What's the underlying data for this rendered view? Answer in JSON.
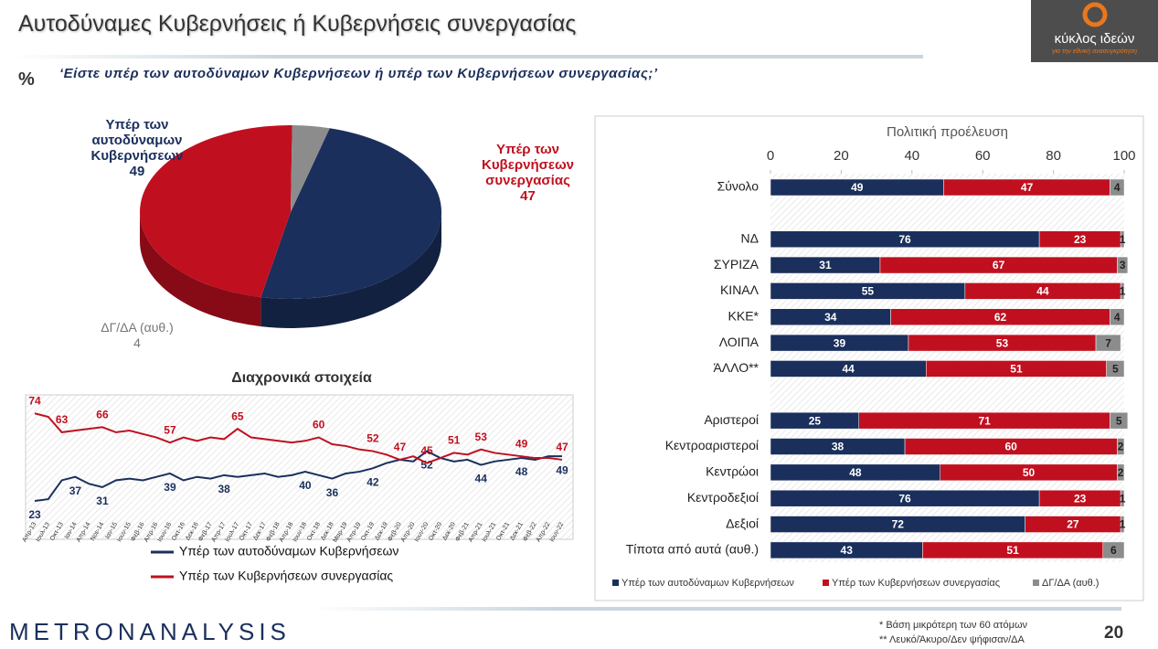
{
  "header": {
    "title": "Αυτοδύναμες Κυβερνήσεις ή Κυβερνήσεις συνεργασίας",
    "percent_sign": "%",
    "question": "‘Είστε υπέρ των αυτοδύναμων Κυβερνήσεων ή υπέρ των Κυβερνήσεων συνεργασίας;’"
  },
  "logo": {
    "name": "κύκλος ιδεών",
    "tagline": "για την εθνική ανασυγκρότηση"
  },
  "chart_data": [
    {
      "type": "pie",
      "categories": [
        "Υπέρ των αυτοδύναμων Κυβερνήσεων",
        "Υπέρ των Κυβερνήσεων συνεργασίας",
        "ΔΓ/ΔΑ (αυθ.)"
      ],
      "values": [
        49,
        47,
        4
      ],
      "colors": [
        "#1b2f5c",
        "#c0101f",
        "#8c8c8c"
      ]
    },
    {
      "type": "line",
      "title": "Διαχρονικά στοιχεία",
      "x": [
        "Απρ-13",
        "Ιουλ-13",
        "Οκτ-13",
        "Ιαν-14",
        "Απρ-14",
        "Νοε-14",
        "Ιαν-15",
        "Ιουν-15",
        "Φεβ-16",
        "Απρ-16",
        "Ιουν-16",
        "Οκτ-16",
        "Δεκ-16",
        "Φεβ-17",
        "Απρ-17",
        "Ιουλ-17",
        "Οκτ-17",
        "Δεκ-17",
        "Φεβ-18",
        "Απρ-18",
        "Ιουν-18",
        "Οκτ-18",
        "Δεκ-18",
        "Μαρ-19",
        "Απρ-19",
        "Οκτ-19",
        "Δεκ-19",
        "Φεβ-20",
        "Απρ-20",
        "Ιουν-20",
        "Οκτ-20",
        "Δεκ-20",
        "Φεβ-21",
        "Απρ-21",
        "Ιουλ-21",
        "Οκτ-21",
        "Δεκ-21",
        "Φεβ-22",
        "Απρ-22",
        "Ιουν-22"
      ],
      "ylim": [
        15,
        80
      ],
      "series": [
        {
          "name": "Υπέρ των αυτοδύναμων Κυβερνήσεων",
          "color": "#1b2f5c",
          "values": [
            23,
            24,
            35,
            37,
            33,
            31,
            35,
            36,
            35,
            37,
            39,
            35,
            37,
            36,
            38,
            37,
            38,
            39,
            37,
            38,
            40,
            38,
            36,
            39,
            40,
            42,
            45,
            47,
            46,
            52,
            48,
            46,
            47,
            44,
            46,
            47,
            48,
            47,
            49,
            49
          ],
          "value_labels": [
            "23",
            null,
            null,
            "37",
            null,
            "31",
            null,
            null,
            null,
            null,
            "39",
            null,
            null,
            null,
            "38",
            null,
            null,
            null,
            null,
            null,
            "40",
            null,
            "36",
            null,
            null,
            "42",
            null,
            null,
            null,
            "52",
            null,
            null,
            null,
            "44",
            null,
            null,
            "48",
            null,
            null,
            "49"
          ]
        },
        {
          "name": "Υπέρ των Κυβερνήσεων συνεργασίας",
          "color": "#c0101f",
          "values": [
            74,
            72,
            63,
            64,
            65,
            66,
            63,
            64,
            62,
            60,
            57,
            60,
            58,
            60,
            59,
            65,
            60,
            59,
            58,
            57,
            58,
            60,
            56,
            55,
            53,
            52,
            50,
            47,
            49,
            45,
            48,
            51,
            50,
            53,
            51,
            50,
            49,
            48,
            48,
            47
          ],
          "value_labels": [
            "74",
            null,
            "63",
            null,
            null,
            "66",
            null,
            null,
            null,
            null,
            "57",
            null,
            null,
            null,
            null,
            "65",
            null,
            null,
            null,
            null,
            null,
            "60",
            null,
            null,
            null,
            "52",
            null,
            "47",
            null,
            "45",
            null,
            "51",
            null,
            "53",
            null,
            null,
            "49",
            null,
            null,
            "47"
          ]
        }
      ]
    },
    {
      "type": "bar",
      "orientation": "horizontal",
      "stacked": true,
      "title": "Πολιτική προέλευση",
      "categories": [
        "Σύνολο",
        null,
        "ΝΔ",
        "ΣΥΡΙΖΑ",
        "ΚΙΝΑΛ",
        "ΚΚΕ*",
        "ΛΟΙΠΑ",
        "ΆΛΛΟ**",
        null,
        "Αριστεροί",
        "Κεντροαριστεροί",
        "Κεντρώοι",
        "Κεντροδεξιοί",
        "Δεξιοί",
        "Τίποτα από αυτά (αυθ.)"
      ],
      "xlim": [
        0,
        100
      ],
      "xticks": [
        0,
        20,
        40,
        60,
        80,
        100
      ],
      "series": [
        {
          "name": "Υπέρ των αυτοδύναμων Κυβερνήσεων",
          "color": "#1b2f5c",
          "values": [
            49,
            null,
            76,
            31,
            55,
            34,
            39,
            44,
            null,
            25,
            38,
            48,
            76,
            72,
            43
          ]
        },
        {
          "name": "Υπέρ των Κυβερνήσεων συνεργασίας",
          "color": "#c0101f",
          "values": [
            47,
            null,
            23,
            67,
            44,
            62,
            53,
            51,
            null,
            71,
            60,
            50,
            23,
            27,
            51
          ]
        },
        {
          "name": "ΔΓ/ΔΑ (αυθ.)",
          "color": "#8c8c8c",
          "values": [
            4,
            null,
            1,
            3,
            1,
            4,
            7,
            5,
            null,
            5,
            2,
            2,
            1,
            1,
            6
          ]
        }
      ]
    }
  ],
  "footer": {
    "brand": "METRONANALYSIS",
    "notes": [
      "*  Βάση μικρότερη των 60 ατόμων",
      "** Λευκό/Άκυρο/Δεν ψήφισαν/ΔΑ"
    ],
    "page": "20"
  }
}
